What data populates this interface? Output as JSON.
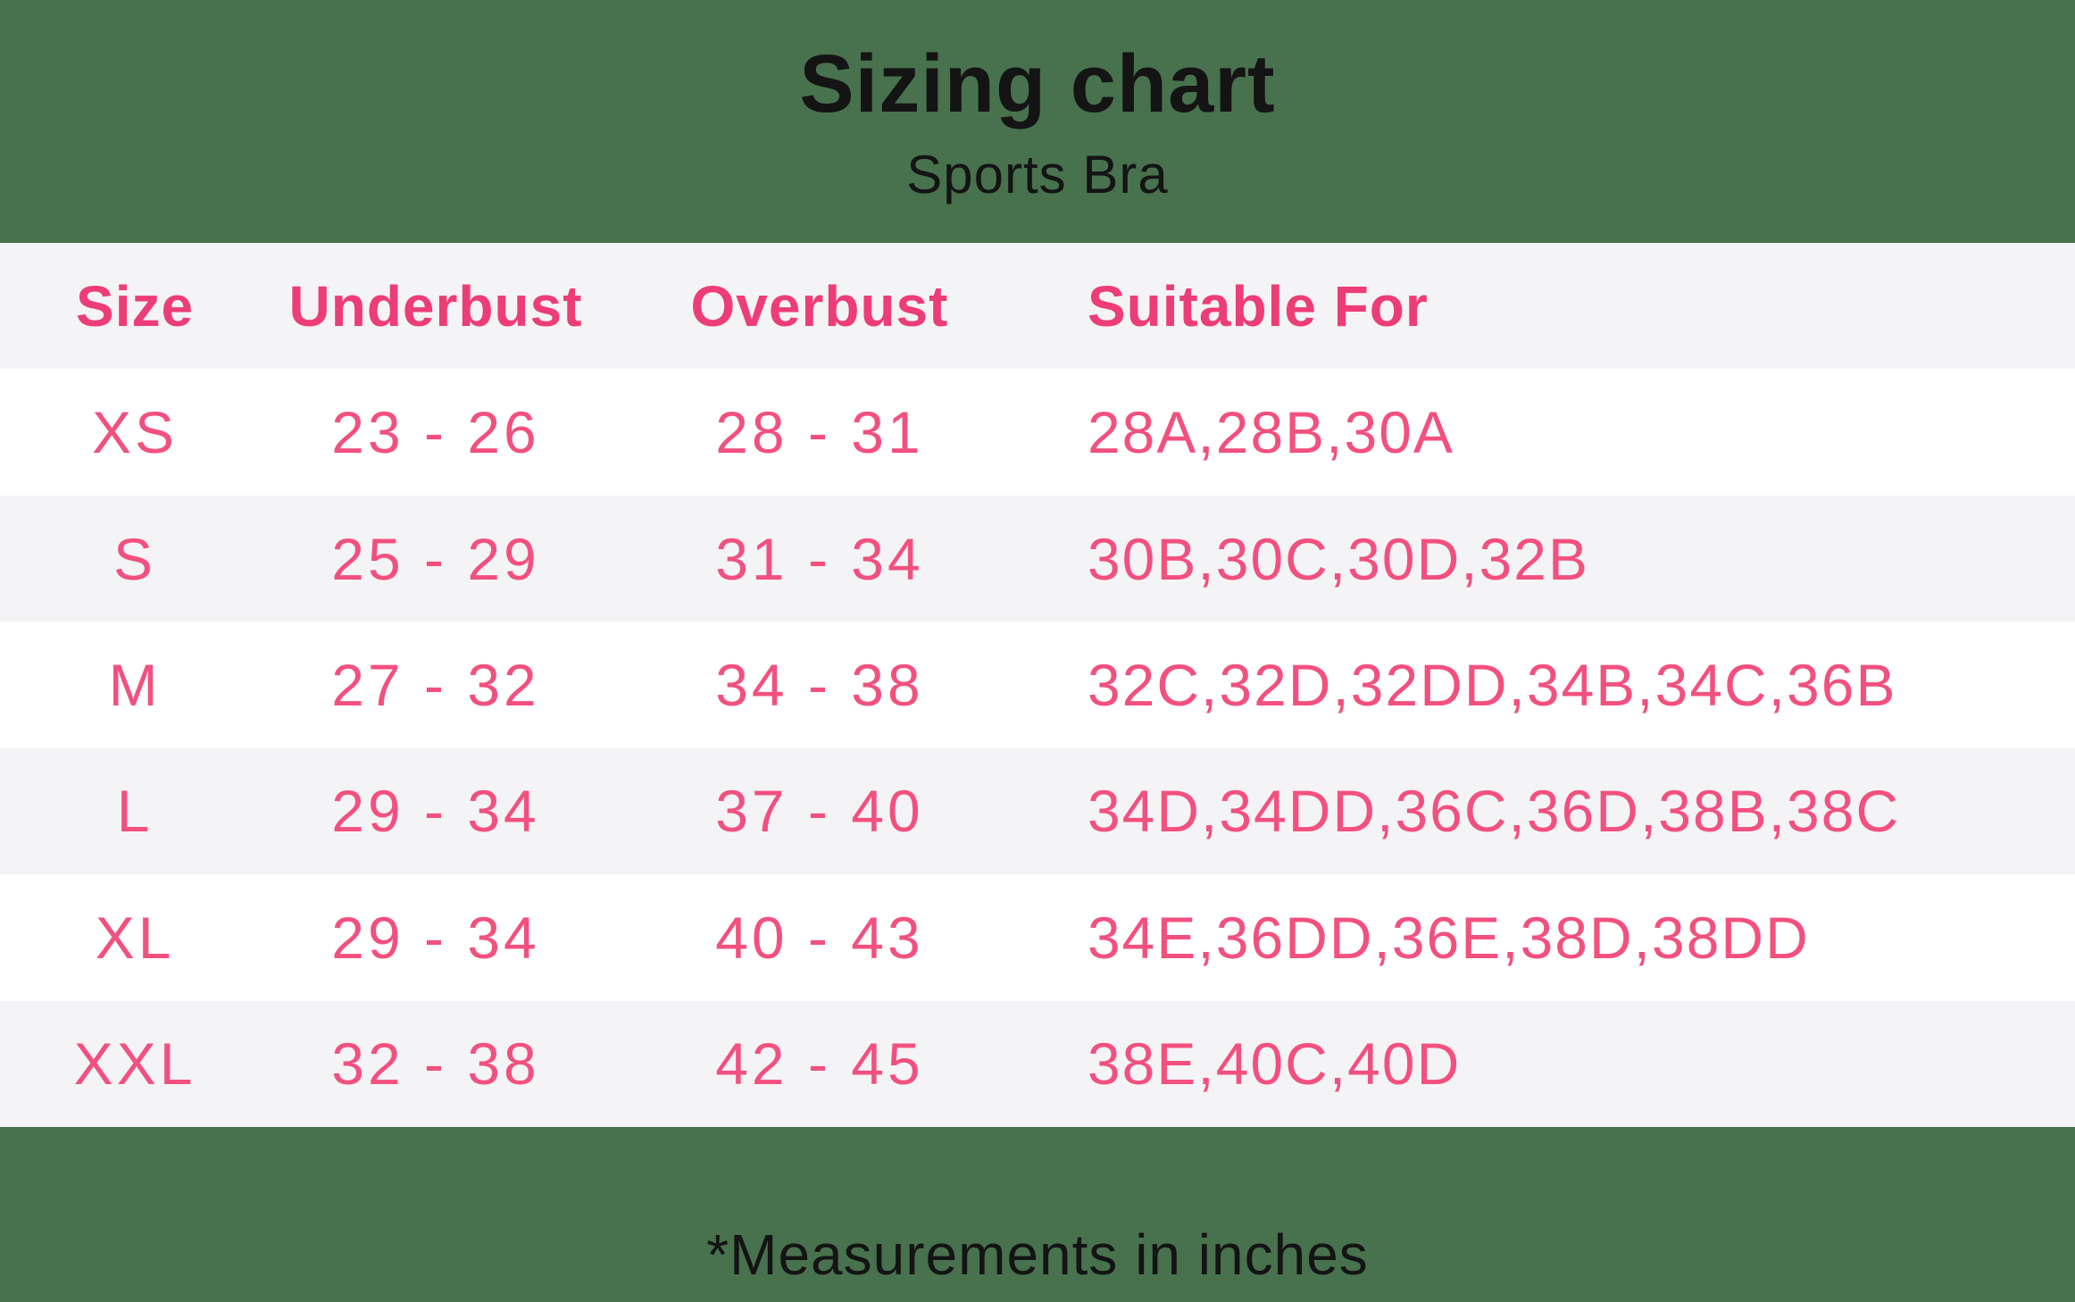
{
  "colors": {
    "background_green": "#48714e",
    "accent_pink_header": "#ed3d76",
    "accent_pink_data": "#f2507f",
    "row_gray": "#f4f3f6",
    "row_white": "#ffffff",
    "text_black": "#141414"
  },
  "header": {
    "title": "Sizing chart",
    "subtitle": "Sports Bra"
  },
  "table": {
    "columns": [
      "Size",
      "Underbust",
      "Overbust",
      "Suitable For"
    ],
    "rows": [
      {
        "size": "XS",
        "underbust": "23 - 26",
        "overbust": "28 - 31",
        "suitable_for": "28A,28B,30A"
      },
      {
        "size": "S",
        "underbust": "25 - 29",
        "overbust": "31 - 34",
        "suitable_for": "30B,30C,30D,32B"
      },
      {
        "size": "M",
        "underbust": "27 - 32",
        "overbust": "34 - 38",
        "suitable_for": "32C,32D,32DD,34B,34C,36B"
      },
      {
        "size": "L",
        "underbust": "29 - 34",
        "overbust": "37 - 40",
        "suitable_for": "34D,34DD,36C,36D,38B,38C"
      },
      {
        "size": "XL",
        "underbust": "29 - 34",
        "overbust": "40 - 43",
        "suitable_for": "34E,36DD,36E,38D,38DD"
      },
      {
        "size": "XXL",
        "underbust": "32 - 38",
        "overbust": "42 - 45",
        "suitable_for": "38E,40C,40D"
      }
    ]
  },
  "footer": {
    "note": "*Measurements in inches"
  },
  "chart_data": {
    "type": "table",
    "title": "Sizing chart",
    "subtitle": "Sports Bra",
    "columns": [
      "Size",
      "Underbust",
      "Overbust",
      "Suitable For"
    ],
    "rows": [
      [
        "XS",
        "23 - 26",
        "28 - 31",
        "28A,28B,30A"
      ],
      [
        "S",
        "25 - 29",
        "31 - 34",
        "30B,30C,30D,32B"
      ],
      [
        "M",
        "27 - 32",
        "34 - 38",
        "32C,32D,32DD,34B,34C,36B"
      ],
      [
        "L",
        "29 - 34",
        "37 - 40",
        "34D,34DD,36C,36D,38B,38C"
      ],
      [
        "XL",
        "29 - 34",
        "40 - 43",
        "34E,36DD,36E,38D,38DD"
      ],
      [
        "XXL",
        "32 - 38",
        "42 - 45",
        "38E,40C,40D"
      ]
    ],
    "footnote": "*Measurements in inches",
    "units": "inches",
    "layout_hints": {
      "alternating_row_shading": true,
      "header_row_shaded": true,
      "first_three_columns_centered": true,
      "last_column_left_aligned": true
    }
  }
}
